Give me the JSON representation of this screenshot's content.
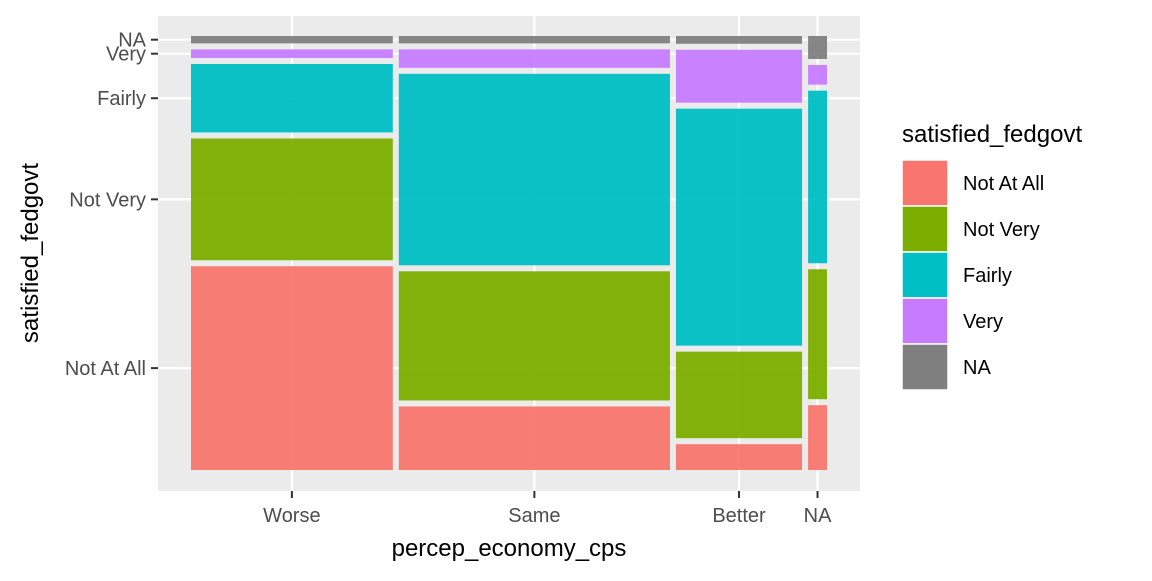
{
  "chart_data": {
    "type": "mosaic",
    "xlabel": "percep_economy_cps",
    "ylabel": "satisfied_fedgovt",
    "x_categories": [
      "Worse",
      "Same",
      "Better",
      "NA"
    ],
    "x_proportions": [
      0.32,
      0.43,
      0.2,
      0.03
    ],
    "y_categories": [
      "Not At All",
      "Not Very",
      "Fairly",
      "Very",
      "NA"
    ],
    "y_tick_labels": [
      "Not At All",
      "Not Very",
      "Fairly",
      "Very",
      "NA"
    ],
    "columns": [
      {
        "x": "Worse",
        "proportions": {
          "Not At All": 0.497,
          "Not Very": 0.297,
          "Fairly": 0.167,
          "Very": 0.021,
          "NA": 0.018
        }
      },
      {
        "x": "Same",
        "proportions": {
          "Not At All": 0.155,
          "Not Very": 0.315,
          "Fairly": 0.467,
          "Very": 0.045,
          "NA": 0.018
        }
      },
      {
        "x": "Better",
        "proportions": {
          "Not At All": 0.063,
          "Not Very": 0.211,
          "Fairly": 0.578,
          "Very": 0.129,
          "NA": 0.019
        }
      },
      {
        "x": "NA",
        "proportions": {
          "Not At All": 0.158,
          "Not Very": 0.317,
          "Fairly": 0.421,
          "Very": 0.048,
          "NA": 0.056
        }
      }
    ],
    "legend": {
      "title": "satisfied_fedgovt",
      "position": "right",
      "entries": [
        "Not At All",
        "Not Very",
        "Fairly",
        "Very",
        "NA"
      ]
    },
    "colors": {
      "Not At All": "#F8766D",
      "Not Very": "#7CAE00",
      "Fairly": "#00BFC4",
      "Very": "#C77CFF",
      "NA": "#7F7F7F"
    },
    "panel_background": "#EBEBEB",
    "grid": true
  }
}
